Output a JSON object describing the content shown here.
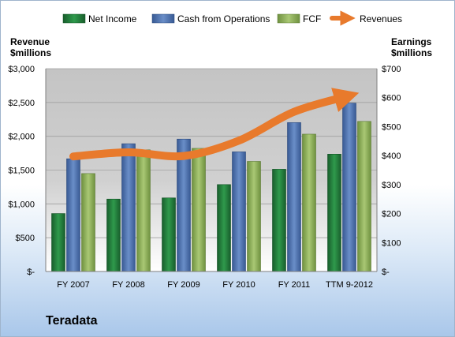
{
  "company_name": "Teradata",
  "colors": {
    "net_income": "#1f7a3a",
    "cash_from_operations": "#4a6fae",
    "fcf": "#8fb15c",
    "revenues": "#e87a2c"
  },
  "chart_data": {
    "type": "bar",
    "categories": [
      "FY 2007",
      "FY 2008",
      "FY 2009",
      "FY 2010",
      "FY 2011",
      "TTM 9-2012"
    ],
    "left_axis": {
      "label_line1": "Revenue",
      "label_line2": "$millions",
      "ylim": [
        0,
        3000
      ],
      "ticks": [
        0,
        500,
        1000,
        1500,
        2000,
        2500,
        3000
      ],
      "tick_labels": [
        "$-",
        "$500",
        "$1,000",
        "$1,500",
        "$2,000",
        "$2,500",
        "$3,000"
      ]
    },
    "right_axis": {
      "label_line1": "Earnings",
      "label_line2": "$millions",
      "ylim": [
        0,
        700
      ],
      "ticks": [
        0,
        100,
        200,
        300,
        400,
        500,
        600,
        700
      ],
      "tick_labels": [
        "$-",
        "$100",
        "$200",
        "$300",
        "$400",
        "$500",
        "$600",
        "$700"
      ]
    },
    "series": [
      {
        "name": "Net Income",
        "type": "bar",
        "axis": "right",
        "values": [
          200,
          250,
          254,
          300,
          353,
          405
        ]
      },
      {
        "name": "Cash from Operations",
        "type": "bar",
        "axis": "right",
        "values": [
          389,
          441,
          457,
          413,
          514,
          581
        ]
      },
      {
        "name": "FCF",
        "type": "bar",
        "axis": "right",
        "values": [
          338,
          420,
          425,
          380,
          474,
          518
        ]
      },
      {
        "name": "Revenues",
        "type": "line",
        "axis": "left",
        "values": [
          1702,
          1762,
          1709,
          1936,
          2362,
          2600
        ]
      }
    ],
    "grid": true,
    "legend_position": "top"
  }
}
